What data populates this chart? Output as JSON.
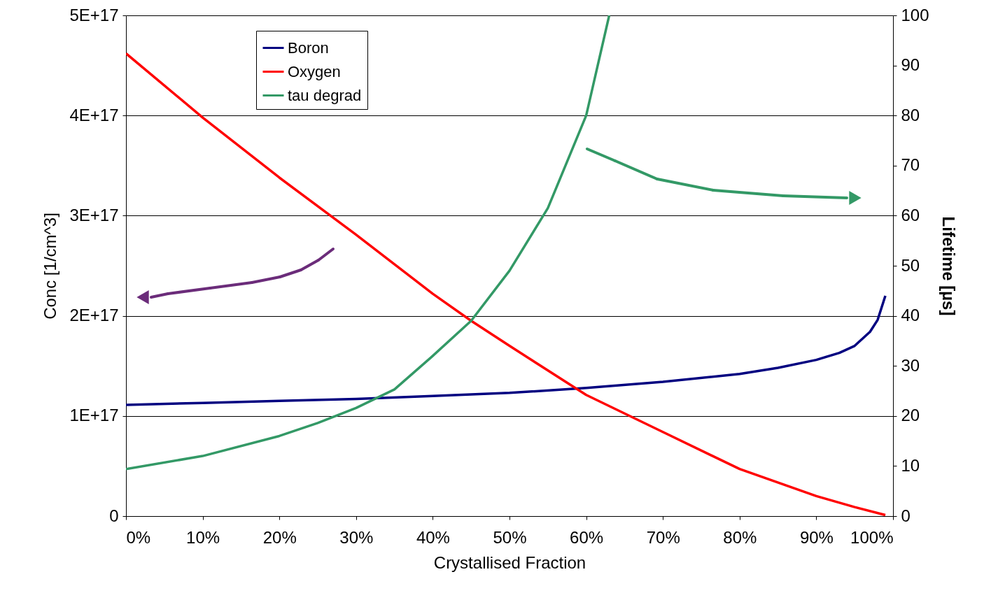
{
  "chart_data": {
    "type": "line",
    "xlabel": "Crystallised Fraction",
    "ylabel": "Conc [1/cm^3]",
    "y2label": "Lifetime [µs]",
    "xlim": [
      0,
      100
    ],
    "xticks": [
      {
        "value": 0,
        "label": "0%"
      },
      {
        "value": 10,
        "label": "10%"
      },
      {
        "value": 20,
        "label": "20%"
      },
      {
        "value": 30,
        "label": "30%"
      },
      {
        "value": 40,
        "label": "40%"
      },
      {
        "value": 50,
        "label": "50%"
      },
      {
        "value": 60,
        "label": "60%"
      },
      {
        "value": 70,
        "label": "70%"
      },
      {
        "value": 80,
        "label": "80%"
      },
      {
        "value": 90,
        "label": "90%"
      },
      {
        "value": 100,
        "label": "100%"
      }
    ],
    "ylim": [
      0,
      5e+17
    ],
    "yticks": [
      0,
      {
        "value": 1e+17,
        "label": "1E+17"
      },
      {
        "value": 2e+17,
        "label": "2E+17"
      },
      {
        "value": 3e+17,
        "label": "3E+17"
      },
      {
        "value": 4e+17,
        "label": "4E+17"
      },
      {
        "value": 5e+17,
        "label": "5E+17"
      }
    ],
    "y2lim": [
      0,
      100
    ],
    "y2ticks": [
      0,
      10,
      20,
      30,
      40,
      50,
      60,
      70,
      80,
      90,
      100
    ],
    "grid": "y",
    "legend": "top left",
    "line_style": "solid",
    "marker": "none",
    "series": [
      {
        "name": "Boron",
        "color": "#000080",
        "x": [
          0,
          10,
          20,
          30,
          40,
          50,
          60,
          70,
          80,
          85,
          90,
          93,
          95,
          97,
          98,
          99
        ],
        "values": [
          1.11e+17,
          1.13e+17,
          1.15e+17,
          1.17e+17,
          1.2e+17,
          1.23e+17,
          1.28e+17,
          1.34e+17,
          1.42e+17,
          1.48e+17,
          1.56e+17,
          1.63e+17,
          1.7e+17,
          1.84e+17,
          1.96e+17,
          2.2e+17
        ]
      },
      {
        "name": "Oxygen",
        "color": "#ff0000",
        "x": [
          0,
          10,
          20,
          30,
          40,
          45,
          50,
          60,
          70,
          80,
          90,
          95,
          99
        ],
        "values": [
          4.62e+17,
          3.98e+17,
          3.38e+17,
          2.81e+17,
          2.22e+17,
          1.95e+17,
          1.7e+17,
          1.21e+17,
          8.4e+16,
          4.7e+16,
          2e+16,
          9000000000000000.0,
          1000000000000000.0
        ]
      },
      {
        "name": "tau degrad",
        "color": "#339966",
        "axis": "y2",
        "x": [
          0,
          10,
          20,
          25,
          30,
          35,
          40,
          45,
          50,
          55,
          60,
          63
        ],
        "values": [
          9.4,
          12,
          16,
          18.6,
          21.6,
          25.3,
          32,
          39,
          49,
          61.5,
          80,
          100
        ]
      }
    ]
  }
}
